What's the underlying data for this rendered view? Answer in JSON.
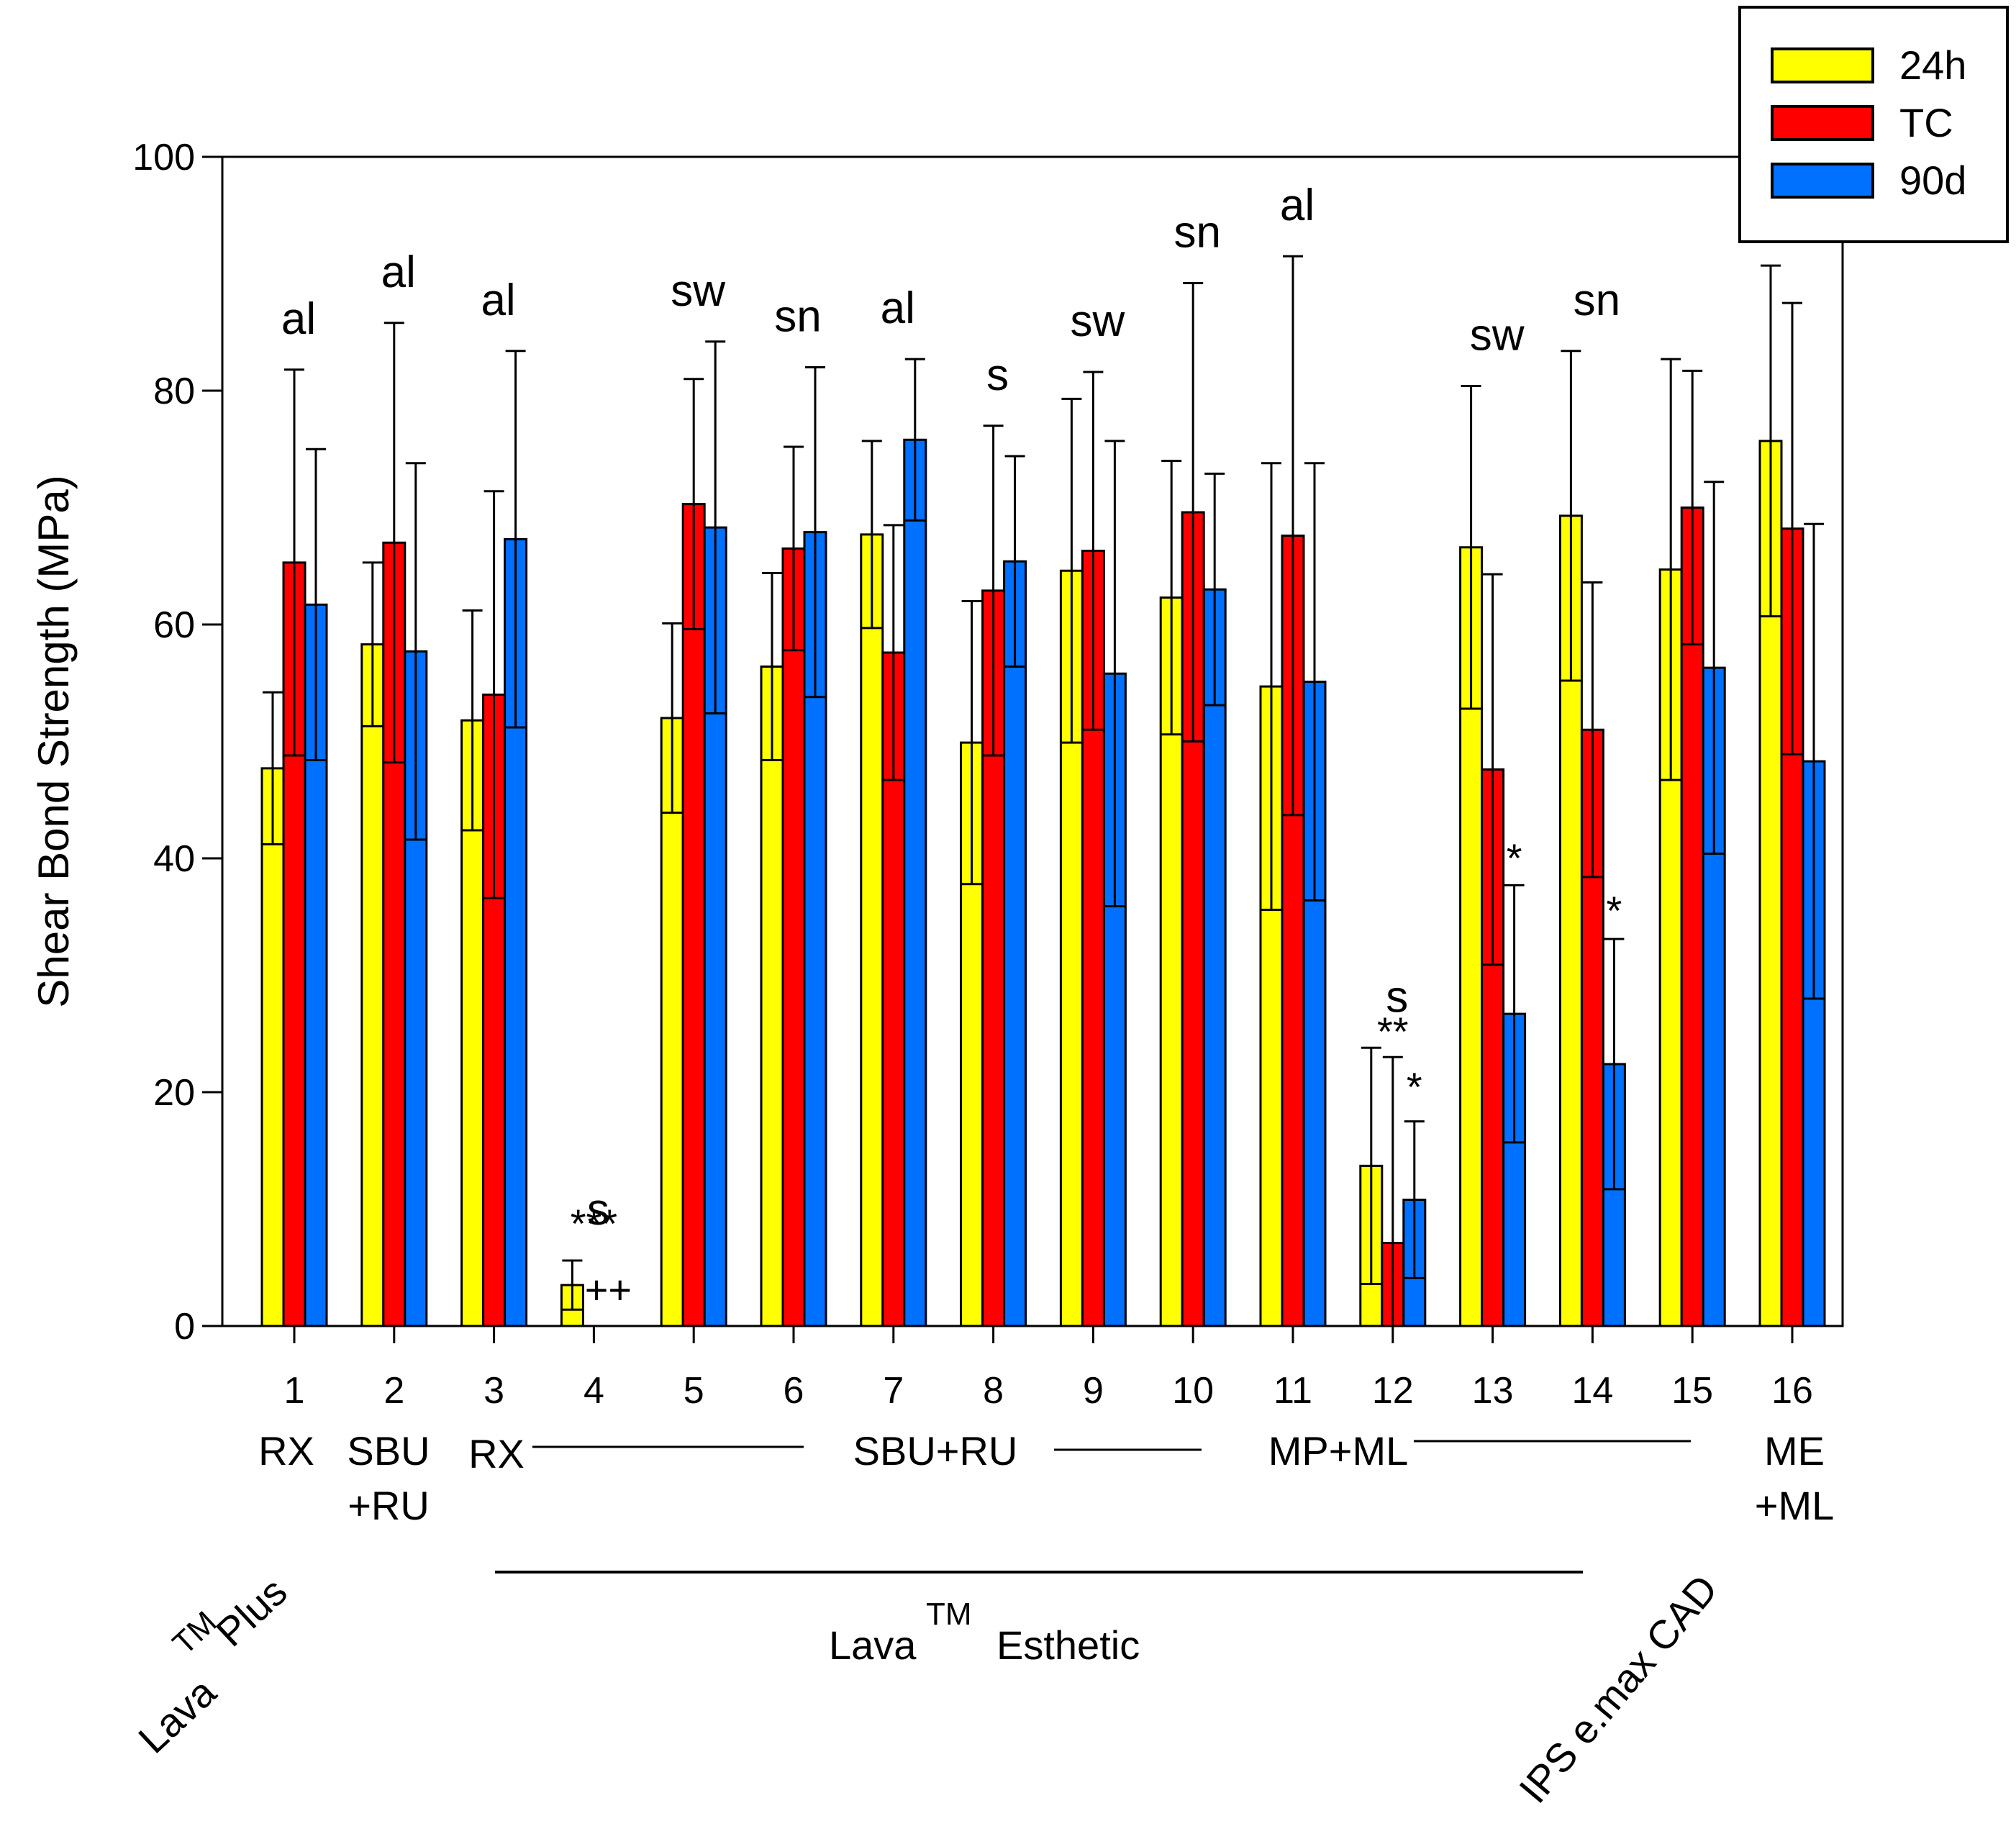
{
  "chart_data": {
    "type": "bar",
    "title": "",
    "xlabel": "",
    "ylabel": "Shear Bond Strength (MPa)",
    "ylim": [
      0,
      100
    ],
    "yticks": [
      "0",
      "20",
      "40",
      "60",
      "80",
      "100"
    ],
    "categories": [
      "1",
      "2",
      "3",
      "4",
      "5",
      "6",
      "7",
      "8",
      "9",
      "10",
      "11",
      "12",
      "13",
      "14",
      "15",
      "16"
    ],
    "series": [
      {
        "name": "24h",
        "color": "#ffff00",
        "values": [
          47.7,
          58.3,
          51.8,
          3.5,
          52.0,
          56.4,
          67.7,
          49.9,
          64.6,
          62.3,
          54.7,
          13.7,
          66.6,
          69.3,
          64.7,
          75.7
        ],
        "errors": [
          6.5,
          7.0,
          9.4,
          2.1,
          8.1,
          8.0,
          8.0,
          12.1,
          14.7,
          11.7,
          19.1,
          10.1,
          13.8,
          14.1,
          18.0,
          15.0
        ]
      },
      {
        "name": "TC",
        "color": "#ff0000",
        "values": [
          65.3,
          67.0,
          54.0,
          0,
          70.3,
          66.5,
          57.6,
          62.9,
          66.3,
          69.6,
          67.6,
          7.1,
          47.6,
          51.0,
          70.0,
          68.2
        ],
        "errors": [
          16.5,
          18.8,
          17.4,
          0,
          10.7,
          8.7,
          10.9,
          14.1,
          15.3,
          19.6,
          23.9,
          15.9,
          16.7,
          12.6,
          11.7,
          19.3
        ]
      },
      {
        "name": "90d",
        "color": "#0070ff",
        "values": [
          61.7,
          57.7,
          67.3,
          0,
          68.3,
          67.9,
          75.8,
          65.4,
          55.8,
          63.0,
          55.1,
          10.8,
          26.7,
          22.4,
          56.3,
          48.3
        ],
        "errors": [
          13.3,
          16.1,
          16.1,
          0,
          15.9,
          14.1,
          6.9,
          9.0,
          19.9,
          9.9,
          18.7,
          6.7,
          11.0,
          10.7,
          15.9,
          20.3
        ]
      }
    ],
    "significance_labels": [
      {
        "group": "1",
        "text": "al"
      },
      {
        "group": "2",
        "text": "al"
      },
      {
        "group": "3",
        "text": "al"
      },
      {
        "group": "4",
        "text": "s"
      },
      {
        "group": "5",
        "text": "sw"
      },
      {
        "group": "6",
        "text": "sn"
      },
      {
        "group": "7",
        "text": "al"
      },
      {
        "group": "8",
        "text": "s"
      },
      {
        "group": "9",
        "text": "sw"
      },
      {
        "group": "10",
        "text": "sn"
      },
      {
        "group": "11",
        "text": "al"
      },
      {
        "group": "12",
        "text": "s"
      },
      {
        "group": "13",
        "text": "sw"
      },
      {
        "group": "14",
        "text": "sn"
      }
    ],
    "annotations": {
      "g4_stars": "***",
      "g4_cross": "++",
      "g12_stars_24h": "**",
      "g12_star_90d": "*",
      "g13_star_90d": "*",
      "g14_star_90d": "*"
    },
    "groups": {
      "g1": "RX",
      "g2_line1": "SBU",
      "g2_line2": "+RU",
      "g3": "RX",
      "g7_8": "SBU+RU",
      "g11": "MP+ML",
      "g16_line1": "ME",
      "g16_line2": "+ML"
    },
    "materials": {
      "lava_plus_main": "Lava",
      "lava_plus_sup": "TM",
      "lava_plus_rest": "Plus",
      "lava_esthetic_main": "Lava",
      "lava_esthetic_sup": "TM",
      "lava_esthetic_rest": "Esthetic",
      "ips": "IPS e.max CAD"
    },
    "legend": {
      "position": "top-right",
      "entries": [
        "24h",
        "TC",
        "90d"
      ]
    }
  }
}
